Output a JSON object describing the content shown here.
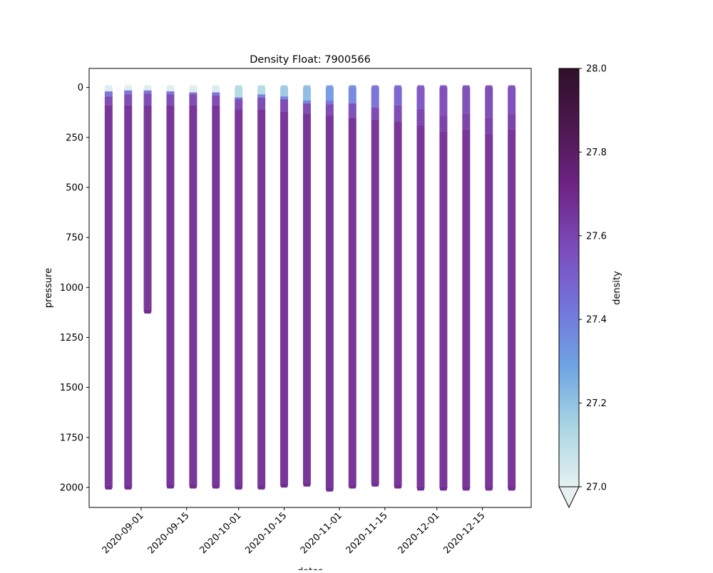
{
  "chart_data": {
    "type": "scatter",
    "title": "Density Float: 7900566",
    "xlabel": "dates",
    "ylabel": "pressure",
    "x_ticks": [
      "2020-09-01",
      "2020-09-15",
      "2020-10-01",
      "2020-10-15",
      "2020-11-01",
      "2020-11-15",
      "2020-12-01",
      "2020-12-15"
    ],
    "y_ticks": [
      0,
      250,
      500,
      750,
      1000,
      1250,
      1500,
      1750,
      2000
    ],
    "xlim": [
      "2020-08-16",
      "2020-12-30"
    ],
    "ylim": [
      2100,
      -95
    ],
    "y_inverted": true,
    "grid": false,
    "colorbar": {
      "label": "density",
      "min": 27.0,
      "max": 28.0,
      "ticks": [
        "27.0",
        "27.2",
        "27.4",
        "27.6",
        "27.8",
        "28.0"
      ],
      "extend": "min",
      "colormap": "dense",
      "colors": [
        "#e6f0f0",
        "#a9d6e3",
        "#6ea5e3",
        "#7474dd",
        "#7b4bbb",
        "#6f2487",
        "#4d1850",
        "#2f0f2a"
      ]
    },
    "profiles": [
      {
        "date": "2020-08-22",
        "max_pressure": 2000,
        "layers": [
          {
            "to": 20,
            "density": 27.02
          },
          {
            "to": 45,
            "density": 27.45
          },
          {
            "to": 90,
            "density": 27.6
          },
          {
            "to": 2000,
            "density": 27.68
          }
        ]
      },
      {
        "date": "2020-08-28",
        "max_pressure": 2000,
        "layers": [
          {
            "to": 15,
            "density": 27.02
          },
          {
            "to": 35,
            "density": 27.45
          },
          {
            "to": 90,
            "density": 27.6
          },
          {
            "to": 2000,
            "density": 27.68
          }
        ]
      },
      {
        "date": "2020-09-03",
        "max_pressure": 1120,
        "layers": [
          {
            "to": 15,
            "density": 27.02
          },
          {
            "to": 30,
            "density": 27.45
          },
          {
            "to": 90,
            "density": 27.6
          },
          {
            "to": 1120,
            "density": 27.68
          }
        ]
      },
      {
        "date": "2020-09-10",
        "max_pressure": 1995,
        "layers": [
          {
            "to": 20,
            "density": 27.02
          },
          {
            "to": 35,
            "density": 27.45
          },
          {
            "to": 90,
            "density": 27.6
          },
          {
            "to": 1995,
            "density": 27.68
          }
        ]
      },
      {
        "date": "2020-09-17",
        "max_pressure": 1995,
        "layers": [
          {
            "to": 25,
            "density": 27.02
          },
          {
            "to": 35,
            "density": 27.45
          },
          {
            "to": 90,
            "density": 27.6
          },
          {
            "to": 1995,
            "density": 27.68
          }
        ]
      },
      {
        "date": "2020-09-24",
        "max_pressure": 1995,
        "layers": [
          {
            "to": 25,
            "density": 27.03
          },
          {
            "to": 40,
            "density": 27.45
          },
          {
            "to": 90,
            "density": 27.6
          },
          {
            "to": 1995,
            "density": 27.68
          }
        ]
      },
      {
        "date": "2020-10-01",
        "max_pressure": 2000,
        "layers": [
          {
            "to": 50,
            "density": 27.12
          },
          {
            "to": 60,
            "density": 27.45
          },
          {
            "to": 110,
            "density": 27.6
          },
          {
            "to": 2000,
            "density": 27.68
          }
        ]
      },
      {
        "date": "2020-10-08",
        "max_pressure": 2000,
        "layers": [
          {
            "to": 35,
            "density": 27.12
          },
          {
            "to": 50,
            "density": 27.4
          },
          {
            "to": 110,
            "density": 27.6
          },
          {
            "to": 2000,
            "density": 27.68
          }
        ]
      },
      {
        "date": "2020-10-15",
        "max_pressure": 1990,
        "layers": [
          {
            "to": 45,
            "density": 27.18
          },
          {
            "to": 60,
            "density": 27.4
          },
          {
            "to": 120,
            "density": 27.6
          },
          {
            "to": 1990,
            "density": 27.68
          }
        ]
      },
      {
        "date": "2020-10-22",
        "max_pressure": 1985,
        "layers": [
          {
            "to": 65,
            "density": 27.22
          },
          {
            "to": 80,
            "density": 27.4
          },
          {
            "to": 130,
            "density": 27.6
          },
          {
            "to": 1985,
            "density": 27.68
          }
        ]
      },
      {
        "date": "2020-10-29",
        "max_pressure": 2010,
        "layers": [
          {
            "to": 65,
            "density": 27.32
          },
          {
            "to": 85,
            "density": 27.45
          },
          {
            "to": 140,
            "density": 27.6
          },
          {
            "to": 2010,
            "density": 27.68
          }
        ]
      },
      {
        "date": "2020-11-05",
        "max_pressure": 1995,
        "layers": [
          {
            "to": 80,
            "density": 27.38
          },
          {
            "to": 150,
            "density": 27.58
          },
          {
            "to": 1995,
            "density": 27.68
          }
        ]
      },
      {
        "date": "2020-11-12",
        "max_pressure": 1985,
        "layers": [
          {
            "to": 100,
            "density": 27.45
          },
          {
            "to": 160,
            "density": 27.6
          },
          {
            "to": 1985,
            "density": 27.68
          }
        ]
      },
      {
        "date": "2020-11-19",
        "max_pressure": 1995,
        "layers": [
          {
            "to": 90,
            "density": 27.5
          },
          {
            "to": 170,
            "density": 27.6
          },
          {
            "to": 1995,
            "density": 27.68
          }
        ]
      },
      {
        "date": "2020-11-26",
        "max_pressure": 2005,
        "layers": [
          {
            "to": 110,
            "density": 27.55
          },
          {
            "to": 190,
            "density": 27.62
          },
          {
            "to": 2005,
            "density": 27.68
          }
        ]
      },
      {
        "date": "2020-12-03",
        "max_pressure": 2005,
        "layers": [
          {
            "to": 140,
            "density": 27.58
          },
          {
            "to": 220,
            "density": 27.63
          },
          {
            "to": 2005,
            "density": 27.68
          }
        ]
      },
      {
        "date": "2020-12-10",
        "max_pressure": 2005,
        "layers": [
          {
            "to": 130,
            "density": 27.58
          },
          {
            "to": 210,
            "density": 27.63
          },
          {
            "to": 2005,
            "density": 27.68
          }
        ]
      },
      {
        "date": "2020-12-17",
        "max_pressure": 2005,
        "layers": [
          {
            "to": 150,
            "density": 27.59
          },
          {
            "to": 230,
            "density": 27.63
          },
          {
            "to": 2005,
            "density": 27.68
          }
        ]
      },
      {
        "date": "2020-12-24",
        "max_pressure": 2005,
        "layers": [
          {
            "to": 130,
            "density": 27.58
          },
          {
            "to": 210,
            "density": 27.63
          },
          {
            "to": 2005,
            "density": 27.68
          }
        ]
      }
    ]
  }
}
